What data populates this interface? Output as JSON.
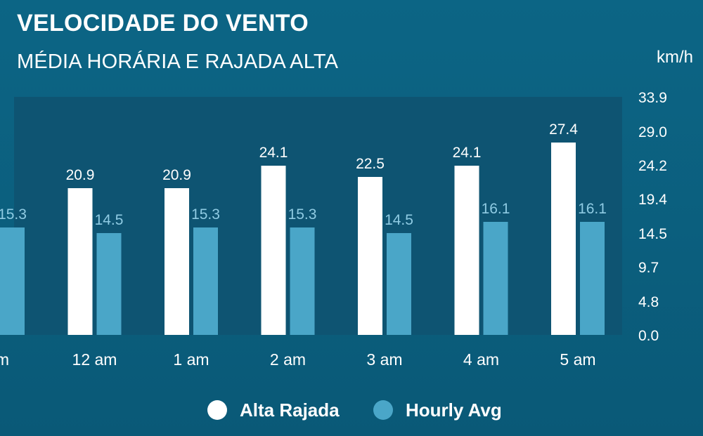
{
  "title": "VELOCIDADE DO VENTO",
  "subtitle": "MÉDIA HORÁRIA E RAJADA ALTA",
  "unit_label": "km/h",
  "colors": {
    "gust": "#ffffff",
    "hourly": "#4aa6c8",
    "plot_bg": "#0e5472",
    "hourly_label": "#8fcbe3"
  },
  "chart_data": {
    "type": "bar",
    "title": "VELOCIDADE DO VENTO",
    "subtitle": "MÉDIA HORÁRIA E RAJADA ALTA",
    "ylabel": "km/h",
    "ylim": [
      0,
      33.9
    ],
    "yticks": [
      "0.0",
      "4.8",
      "9.7",
      "14.5",
      "19.4",
      "24.2",
      "29.0",
      "33.9"
    ],
    "categories": [
      "pm",
      "12 am",
      "1 am",
      "2 am",
      "3 am",
      "4 am",
      "5 am"
    ],
    "series": [
      {
        "name": "Alta Rajada",
        "values": [
          null,
          20.9,
          20.9,
          24.1,
          22.5,
          24.1,
          27.4
        ]
      },
      {
        "name": "Hourly Avg",
        "values": [
          15.3,
          14.5,
          15.3,
          15.3,
          14.5,
          16.1,
          16.1
        ]
      }
    ],
    "legend_position": "bottom",
    "grid": false
  }
}
